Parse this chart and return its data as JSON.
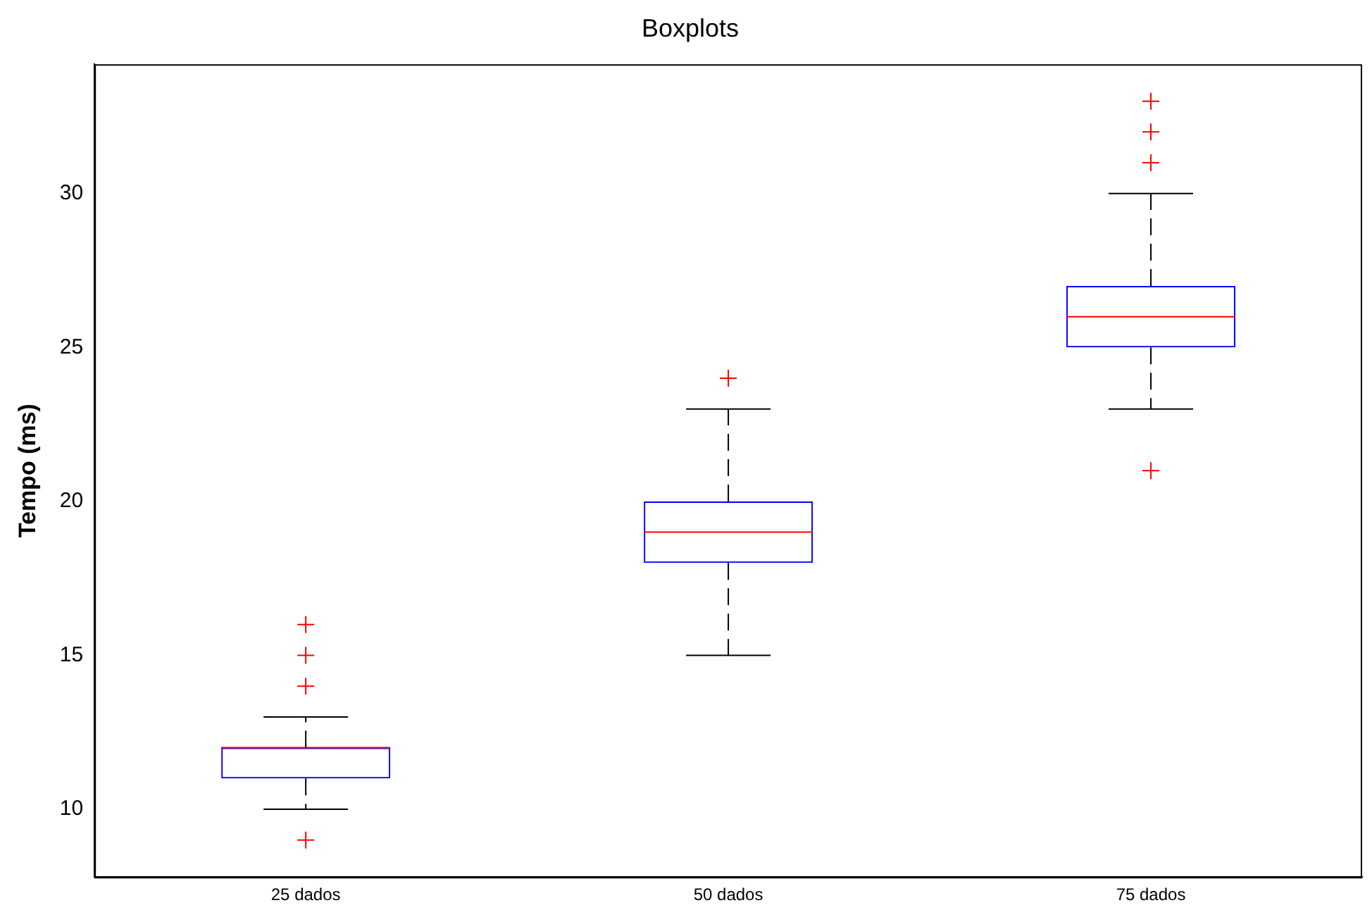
{
  "chart_data": {
    "type": "box",
    "title": "Boxplots",
    "ylabel": "Tempo (ms)",
    "categories": [
      "25 dados",
      "50 dados",
      "75 dados"
    ],
    "series": [
      {
        "color": "#0000ff",
        "boxes": [
          {
            "low": 10,
            "q1": 11,
            "median": 12,
            "q3": 12,
            "high": 13,
            "outliers": [
              9,
              14,
              15,
              16
            ]
          },
          {
            "low": 15,
            "q1": 18,
            "median": 19,
            "q3": 20,
            "high": 23,
            "outliers": [
              24
            ]
          },
          {
            "low": 23,
            "q1": 25,
            "median": 26,
            "q3": 27,
            "high": 30,
            "outliers": [
              21,
              31,
              32,
              33
            ]
          }
        ]
      }
    ],
    "ylim": [
      7.8,
      34.2
    ],
    "yticks": [
      10,
      15,
      20,
      25,
      30
    ],
    "grid": false,
    "legend": false,
    "marker": "cross"
  }
}
